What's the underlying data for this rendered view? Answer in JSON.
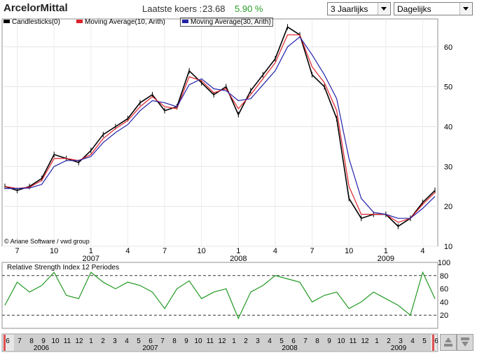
{
  "header": {
    "title": "ArcelorMittal",
    "price_label": "Laatste koers :",
    "price_value": "23.68",
    "price_change": "5.90 %",
    "period_select": "3 Jaarlijks",
    "interval_select": "Dagelijks"
  },
  "legend": {
    "candles": "Candlesticks(0)",
    "ma10": "Moving Average(10, Arith)",
    "ma30": "Moving Average(30, Arith)"
  },
  "colors": {
    "candles": "#000000",
    "ma10": "#e0202a",
    "ma30": "#2222aa",
    "rsi": "#229922",
    "scroll_marker": "#e05050"
  },
  "copyright": "© Ariane Software / vwd group",
  "rsi_label": "Relative Strength Index 12 Periodes",
  "chart_data": [
    {
      "type": "line",
      "title": "",
      "series": [
        {
          "name": "Candlesticks(0)",
          "x": [
            "2006-06",
            "2006-07",
            "2006-08",
            "2006-09",
            "2006-10",
            "2006-11",
            "2006-12",
            "2007-01",
            "2007-02",
            "2007-03",
            "2007-04",
            "2007-05",
            "2007-06",
            "2007-07",
            "2007-08",
            "2007-09",
            "2007-10",
            "2007-11",
            "2007-12",
            "2008-01",
            "2008-02",
            "2008-03",
            "2008-04",
            "2008-05",
            "2008-06",
            "2008-07",
            "2008-08",
            "2008-09",
            "2008-10",
            "2008-11",
            "2008-12",
            "2009-01",
            "2009-02",
            "2009-03",
            "2009-04",
            "2009-05"
          ],
          "values": [
            25,
            24,
            25,
            27,
            33,
            32,
            31,
            34,
            38,
            40,
            42,
            46,
            48,
            44,
            45,
            54,
            51,
            48,
            50,
            43,
            49,
            53,
            57,
            65,
            63,
            53,
            50,
            42,
            22,
            17,
            18,
            18,
            15,
            17,
            21,
            24
          ]
        },
        {
          "name": "Moving Average(10, Arith)",
          "x": [
            "2006-06",
            "2006-07",
            "2006-08",
            "2006-09",
            "2006-10",
            "2006-11",
            "2006-12",
            "2007-01",
            "2007-02",
            "2007-03",
            "2007-04",
            "2007-05",
            "2007-06",
            "2007-07",
            "2007-08",
            "2007-09",
            "2007-10",
            "2007-11",
            "2007-12",
            "2008-01",
            "2008-02",
            "2008-03",
            "2008-04",
            "2008-05",
            "2008-06",
            "2008-07",
            "2008-08",
            "2008-09",
            "2008-10",
            "2008-11",
            "2008-12",
            "2009-01",
            "2009-02",
            "2009-03",
            "2009-04",
            "2009-05"
          ],
          "values": [
            25,
            24.5,
            24.8,
            26.5,
            32,
            32,
            31.5,
            33,
            37,
            39.5,
            41.5,
            45,
            47.5,
            45,
            44.5,
            52.5,
            51.5,
            48.5,
            49.5,
            44.5,
            48,
            52,
            56,
            63,
            63,
            55,
            51,
            44,
            25,
            18,
            18,
            18,
            16,
            17,
            20.5,
            23.5
          ]
        },
        {
          "name": "Moving Average(30, Arith)",
          "x": [
            "2006-06",
            "2006-07",
            "2006-08",
            "2006-09",
            "2006-10",
            "2006-11",
            "2006-12",
            "2007-01",
            "2007-02",
            "2007-03",
            "2007-04",
            "2007-05",
            "2007-06",
            "2007-07",
            "2007-08",
            "2007-09",
            "2007-10",
            "2007-11",
            "2007-12",
            "2008-01",
            "2008-02",
            "2008-03",
            "2008-04",
            "2008-05",
            "2008-06",
            "2008-07",
            "2008-08",
            "2008-09",
            "2008-10",
            "2008-11",
            "2008-12",
            "2009-01",
            "2009-02",
            "2009-03",
            "2009-04",
            "2009-05"
          ],
          "values": [
            24.5,
            24.5,
            24.6,
            25.5,
            30,
            31.5,
            31.5,
            32.5,
            36,
            38.5,
            40.5,
            44,
            46.5,
            46,
            45,
            50.5,
            52,
            49.5,
            49,
            46.5,
            47,
            50.5,
            54,
            60,
            62.5,
            58,
            53,
            47,
            32,
            22,
            18.5,
            18,
            17,
            17,
            19.5,
            22.5
          ]
        }
      ],
      "ylim": [
        10,
        67
      ],
      "y_ticks": [
        10,
        20,
        30,
        40,
        50,
        60
      ],
      "x_tick_labels": [
        "7",
        "10",
        "1",
        "4",
        "7",
        "10",
        "1",
        "4",
        "7",
        "10",
        "1",
        "4"
      ],
      "x_year_labels": [
        "2007",
        "2008",
        "2009"
      ]
    },
    {
      "type": "line",
      "title": "Relative Strength Index 12 Periodes",
      "series": [
        {
          "name": "RSI",
          "x": [
            "2006-06",
            "2006-07",
            "2006-08",
            "2006-09",
            "2006-10",
            "2006-11",
            "2006-12",
            "2007-01",
            "2007-02",
            "2007-03",
            "2007-04",
            "2007-05",
            "2007-06",
            "2007-07",
            "2007-08",
            "2007-09",
            "2007-10",
            "2007-11",
            "2007-12",
            "2008-01",
            "2008-02",
            "2008-03",
            "2008-04",
            "2008-05",
            "2008-06",
            "2008-07",
            "2008-08",
            "2008-09",
            "2008-10",
            "2008-11",
            "2008-12",
            "2009-01",
            "2009-02",
            "2009-03",
            "2009-04",
            "2009-05"
          ],
          "values": [
            35,
            70,
            55,
            65,
            85,
            50,
            45,
            85,
            70,
            60,
            70,
            65,
            55,
            30,
            60,
            72,
            45,
            55,
            60,
            15,
            55,
            65,
            80,
            75,
            70,
            40,
            50,
            55,
            30,
            40,
            55,
            45,
            35,
            20,
            85,
            45
          ]
        }
      ],
      "ylim": [
        0,
        100
      ],
      "y_ticks": [
        20,
        40,
        60,
        80,
        100
      ],
      "reference_lines": [
        20,
        80
      ]
    }
  ],
  "timeline": {
    "month_labels": [
      "6",
      "7",
      "8",
      "9",
      "10",
      "11",
      "12",
      "1",
      "2",
      "3",
      "4",
      "5",
      "6",
      "7",
      "8",
      "9",
      "10",
      "11",
      "12",
      "1",
      "2",
      "3",
      "4",
      "5",
      "6",
      "7",
      "8",
      "9",
      "10",
      "11",
      "12",
      "1",
      "2",
      "3",
      "4",
      "5",
      "6"
    ],
    "year_labels": [
      "2006",
      "2007",
      "2008",
      "2009"
    ]
  }
}
